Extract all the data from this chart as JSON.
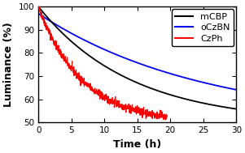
{
  "title": "",
  "xlabel": "Time (h)",
  "ylabel": "Luminance (%)",
  "xlim": [
    0,
    30
  ],
  "ylim": [
    50,
    100
  ],
  "xticks": [
    0,
    5,
    10,
    15,
    20,
    25,
    30
  ],
  "yticks": [
    50,
    60,
    70,
    80,
    90,
    100
  ],
  "background_color": "#ffffff",
  "curves": {
    "mCBP": {
      "color": "#000000",
      "linewidth": 1.3,
      "noise": false,
      "decay_A": 50.0,
      "decay_B": 50.0,
      "decay_tau": 14.0
    },
    "oCzBN": {
      "color": "#0000ee",
      "linewidth": 1.3,
      "noise": false,
      "decay_A": 50.0,
      "decay_B": 47.0,
      "decay_tau": 35.0
    },
    "CzPh": {
      "color": "#ff0000",
      "linewidth": 0.8,
      "noise": true,
      "noise_amp": 0.9,
      "decay_A": 50.0,
      "decay_B": 50.0,
      "decay_tau": 8.5,
      "end_time": 19.5
    }
  },
  "legend_labels": [
    "mCBP",
    "oCzBN",
    "CzPh"
  ],
  "legend_colors": [
    "#000000",
    "#0000ee",
    "#ff0000"
  ],
  "legend_loc": "upper right",
  "font_size": 8,
  "tick_font_size": 7.5,
  "label_font_size": 9
}
